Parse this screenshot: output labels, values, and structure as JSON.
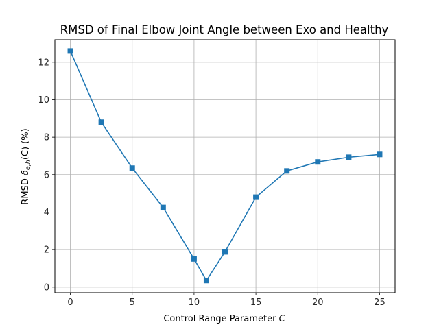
{
  "chart_data": {
    "type": "line",
    "title": "RMSD of Final Elbow Joint Angle between Exo and Healthy",
    "xlabel": "Control Range Parameter",
    "xlabel_symbol": "C",
    "ylabel_prefix": "RMSD",
    "ylabel_symbol": "δ",
    "ylabel_subscript": "e,h",
    "ylabel_suffix": "(C) (%)",
    "x": [
      0,
      2.5,
      5,
      7.5,
      10,
      11,
      12.5,
      15,
      17.5,
      20,
      22.5,
      25
    ],
    "series": [
      {
        "values": [
          12.6,
          8.8,
          6.35,
          4.25,
          1.5,
          0.35,
          1.88,
          4.8,
          6.2,
          6.68,
          6.93,
          7.08
        ],
        "color": "#1f77b4",
        "marker": "square"
      }
    ],
    "xlim": [
      -1.25,
      26.25
    ],
    "ylim": [
      -0.3,
      13.2
    ],
    "xticks": [
      0,
      5,
      10,
      15,
      20,
      25
    ],
    "xtick_labels": [
      "0",
      "5",
      "10",
      "15",
      "20",
      "25"
    ],
    "yticks": [
      0,
      2,
      4,
      6,
      8,
      10,
      12
    ],
    "ytick_labels": [
      "0",
      "2",
      "4",
      "6",
      "8",
      "10",
      "12"
    ],
    "grid": true
  }
}
